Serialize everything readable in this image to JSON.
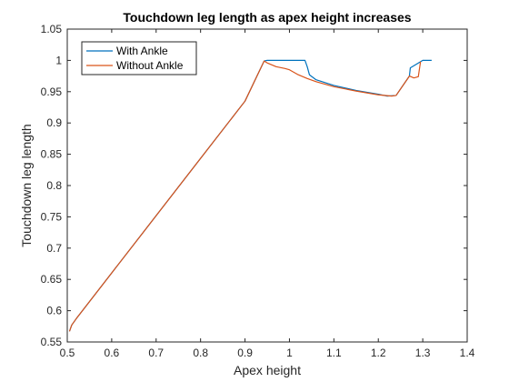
{
  "chart_data": {
    "type": "line",
    "title": "Touchdown leg length as apex height increases",
    "xlabel": "Apex height",
    "ylabel": "Touchdown leg length",
    "xlim": [
      0.5,
      1.4
    ],
    "ylim": [
      0.55,
      1.05
    ],
    "xticks": [
      0.5,
      0.6,
      0.7,
      0.8,
      0.9,
      1,
      1.1,
      1.2,
      1.3,
      1.4
    ],
    "yticks": [
      0.55,
      0.6,
      0.65,
      0.7,
      0.75,
      0.8,
      0.85,
      0.9,
      0.95,
      1,
      1.05
    ],
    "grid": false,
    "legend_position": "top-left",
    "series": [
      {
        "name": "With Ankle",
        "color": "#0072BD",
        "points": [
          [
            0.505,
            0.567
          ],
          [
            0.51,
            0.577
          ],
          [
            0.52,
            0.587
          ],
          [
            0.55,
            0.6145
          ],
          [
            0.6,
            0.6603
          ],
          [
            0.7,
            0.7518
          ],
          [
            0.8,
            0.8434
          ],
          [
            0.9,
            0.9349
          ],
          [
            0.943,
            0.999
          ],
          [
            0.95,
            1.0
          ],
          [
            1.0,
            1.0
          ],
          [
            1.035,
            1.0
          ],
          [
            1.04,
            0.99
          ],
          [
            1.045,
            0.977
          ],
          [
            1.06,
            0.969
          ],
          [
            1.1,
            0.96
          ],
          [
            1.15,
            0.952
          ],
          [
            1.2,
            0.946
          ],
          [
            1.22,
            0.943
          ],
          [
            1.24,
            0.944
          ],
          [
            1.27,
            0.975
          ],
          [
            1.272,
            0.988
          ],
          [
            1.3,
            1.0
          ],
          [
            1.32,
            1.0
          ]
        ]
      },
      {
        "name": "Without Ankle",
        "color": "#D95319",
        "points": [
          [
            0.505,
            0.567
          ],
          [
            0.51,
            0.577
          ],
          [
            0.52,
            0.587
          ],
          [
            0.55,
            0.6145
          ],
          [
            0.6,
            0.6603
          ],
          [
            0.7,
            0.7518
          ],
          [
            0.8,
            0.8434
          ],
          [
            0.9,
            0.9349
          ],
          [
            0.943,
            0.999
          ],
          [
            0.95,
            0.996
          ],
          [
            0.97,
            0.99
          ],
          [
            0.99,
            0.987
          ],
          [
            1.0,
            0.985
          ],
          [
            1.02,
            0.977
          ],
          [
            1.04,
            0.971
          ],
          [
            1.06,
            0.966
          ],
          [
            1.1,
            0.958
          ],
          [
            1.15,
            0.951
          ],
          [
            1.2,
            0.945
          ],
          [
            1.23,
            0.943
          ],
          [
            1.24,
            0.944
          ],
          [
            1.27,
            0.975
          ],
          [
            1.28,
            0.972
          ],
          [
            1.29,
            0.974
          ],
          [
            1.295,
            0.998
          ]
        ]
      }
    ]
  }
}
